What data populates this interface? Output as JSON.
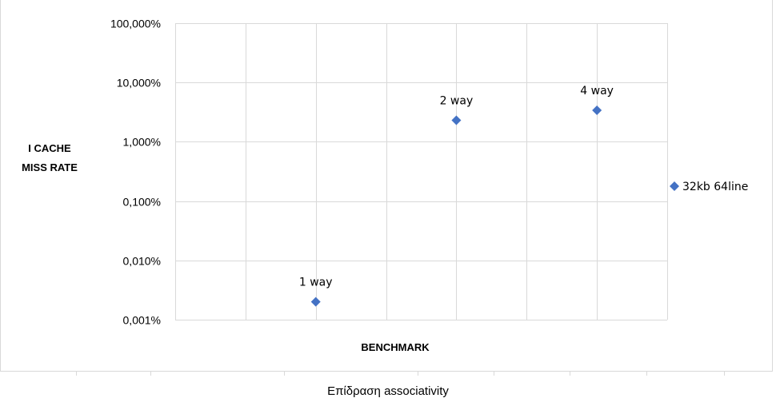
{
  "chart_data": {
    "type": "scatter",
    "ylabel_lines": [
      "I CACHE",
      "MISS RATE"
    ],
    "xlabel": "BENCHMARK",
    "y_scale": "log",
    "ylim": [
      0.001,
      100
    ],
    "y_ticks": [
      100,
      10,
      1,
      0.1,
      0.01,
      0.001
    ],
    "y_tick_labels": [
      "100,000%",
      "10,000%",
      "1,000%",
      "0,100%",
      "0,010%",
      "0,001%"
    ],
    "x_range": [
      0,
      7
    ],
    "grid": true,
    "legend_position": "right",
    "series": [
      {
        "name": "32kb 64line",
        "color": "#4472C4",
        "marker": "diamond",
        "points": [
          {
            "x": 2,
            "y": 0.002,
            "label": "1 way"
          },
          {
            "x": 4,
            "y": 2.3,
            "label": "2 way"
          },
          {
            "x": 6,
            "y": 3.4,
            "label": "4 way"
          }
        ]
      }
    ]
  },
  "caption": "Επίδραση associativity"
}
